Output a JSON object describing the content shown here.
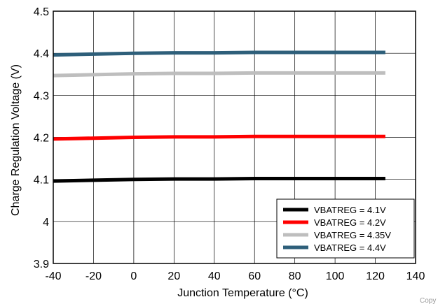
{
  "chart_data": {
    "type": "line",
    "title": "",
    "xlabel": "Junction Temperature (°C)",
    "ylabel": "Charge Regulation Voltage (V)",
    "xlim": [
      -40,
      140
    ],
    "ylim": [
      3.9,
      4.5
    ],
    "xticks": [
      -40,
      -20,
      0,
      20,
      40,
      60,
      80,
      100,
      120,
      140
    ],
    "yticks": [
      3.9,
      4,
      4.1,
      4.2,
      4.3,
      4.4,
      4.5
    ],
    "xtick_labels": [
      "-40",
      "-20",
      "0",
      "20",
      "40",
      "60",
      "80",
      "100",
      "120",
      "140"
    ],
    "ytick_labels": [
      "3.9",
      "4",
      "4.1",
      "4.2",
      "4.3",
      "4.4",
      "4.5"
    ],
    "grid": true,
    "legend_position": "bottom-right",
    "x": [
      -40,
      -20,
      0,
      20,
      40,
      60,
      80,
      100,
      125
    ],
    "series": [
      {
        "name": "VBATREG = 4.1V",
        "color": "#000000",
        "values": [
          4.096,
          4.098,
          4.1,
          4.101,
          4.101,
          4.102,
          4.102,
          4.102,
          4.102
        ]
      },
      {
        "name": "VBATREG = 4.2V",
        "color": "#ff0000",
        "values": [
          4.196,
          4.198,
          4.2,
          4.201,
          4.201,
          4.202,
          4.202,
          4.202,
          4.202
        ]
      },
      {
        "name": "VBATREG = 4.35V",
        "color": "#bebebe",
        "values": [
          4.347,
          4.349,
          4.351,
          4.352,
          4.352,
          4.353,
          4.353,
          4.353,
          4.353
        ]
      },
      {
        "name": "VBATREG = 4.4V",
        "color": "#2e5f7a",
        "values": [
          4.396,
          4.398,
          4.4,
          4.401,
          4.401,
          4.402,
          4.402,
          4.402,
          4.402
        ]
      }
    ]
  },
  "copyright_text": "Copy"
}
